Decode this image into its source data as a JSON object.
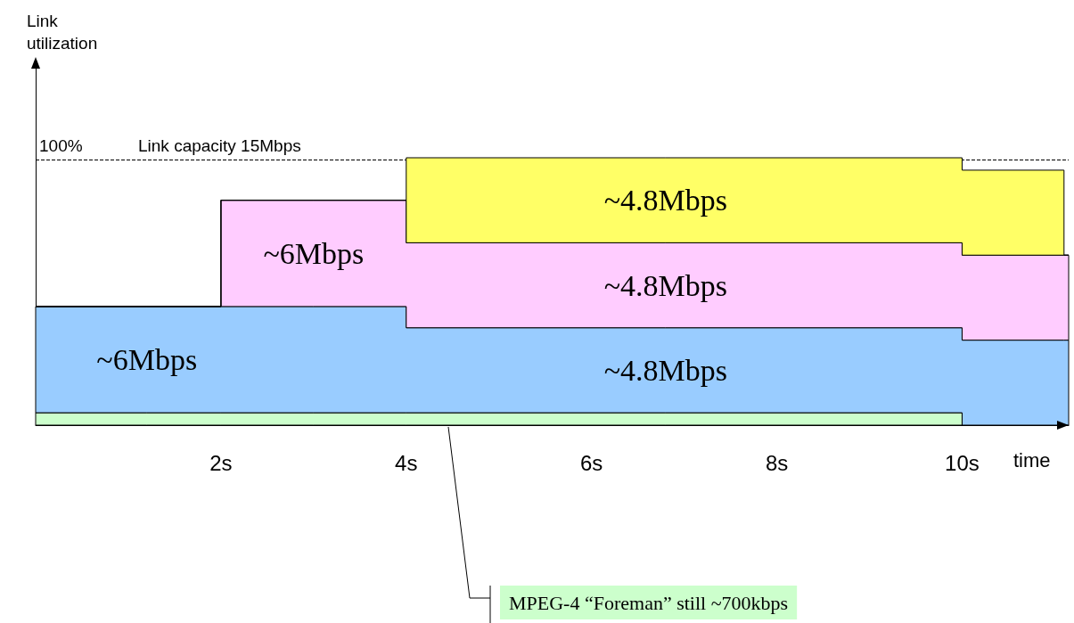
{
  "chart_data": {
    "type": "area",
    "stacked": true,
    "xlabel": "time",
    "xlim": [
      0,
      11.15
    ],
    "xticks": [
      {
        "value": 2,
        "label": "2s"
      },
      {
        "value": 4,
        "label": "4s"
      },
      {
        "value": 6,
        "label": "6s"
      },
      {
        "value": 8,
        "label": "8s"
      },
      {
        "value": 10,
        "label": "10s"
      }
    ],
    "x": [
      0,
      1.2,
      2,
      2,
      3,
      4,
      4,
      6.8,
      10,
      10,
      11.1,
      11.1,
      11.15
    ],
    "ref_lines": [
      {
        "axis": "y",
        "value": 15,
        "label": "Link capacity 15Mbps",
        "line_style": "dashed"
      }
    ],
    "series": [
      {
        "color": "#ccffcc",
        "values": [
          0.7,
          0.7,
          0.7,
          0.7,
          0.7,
          0.7,
          0.7,
          0.7,
          0.7,
          0,
          0,
          0,
          0
        ]
      },
      {
        "color": "#99ccff",
        "values": [
          6,
          6,
          6,
          6,
          6,
          6,
          4.8,
          4.8,
          4.8,
          4.8,
          4.8,
          4.8,
          4.8
        ],
        "value_labels": [
          null,
          "~6Mbps",
          null,
          null,
          null,
          null,
          null,
          "~4.8Mbps",
          null,
          null,
          null,
          null,
          null
        ]
      },
      {
        "color": "#ffccff",
        "values": [
          0,
          0,
          0,
          6,
          6,
          6,
          4.8,
          4.8,
          4.8,
          4.8,
          4.8,
          4.8,
          4.8
        ],
        "value_labels": [
          null,
          null,
          null,
          null,
          "~6Mbps",
          null,
          null,
          "~4.8Mbps",
          null,
          null,
          null,
          null,
          null
        ]
      },
      {
        "color": "#ffff66",
        "values": [
          0,
          0,
          0,
          0,
          0,
          0,
          4.8,
          4.8,
          4.8,
          4.8,
          4.8,
          0,
          0
        ],
        "value_labels": [
          null,
          null,
          null,
          null,
          null,
          null,
          null,
          "~4.8Mbps",
          null,
          null,
          null,
          null,
          null
        ]
      }
    ],
    "annotations": [
      "Link utilization",
      "100%",
      "MPEG-4 “Foreman” still ~700kbps"
    ],
    "grid": false
  }
}
